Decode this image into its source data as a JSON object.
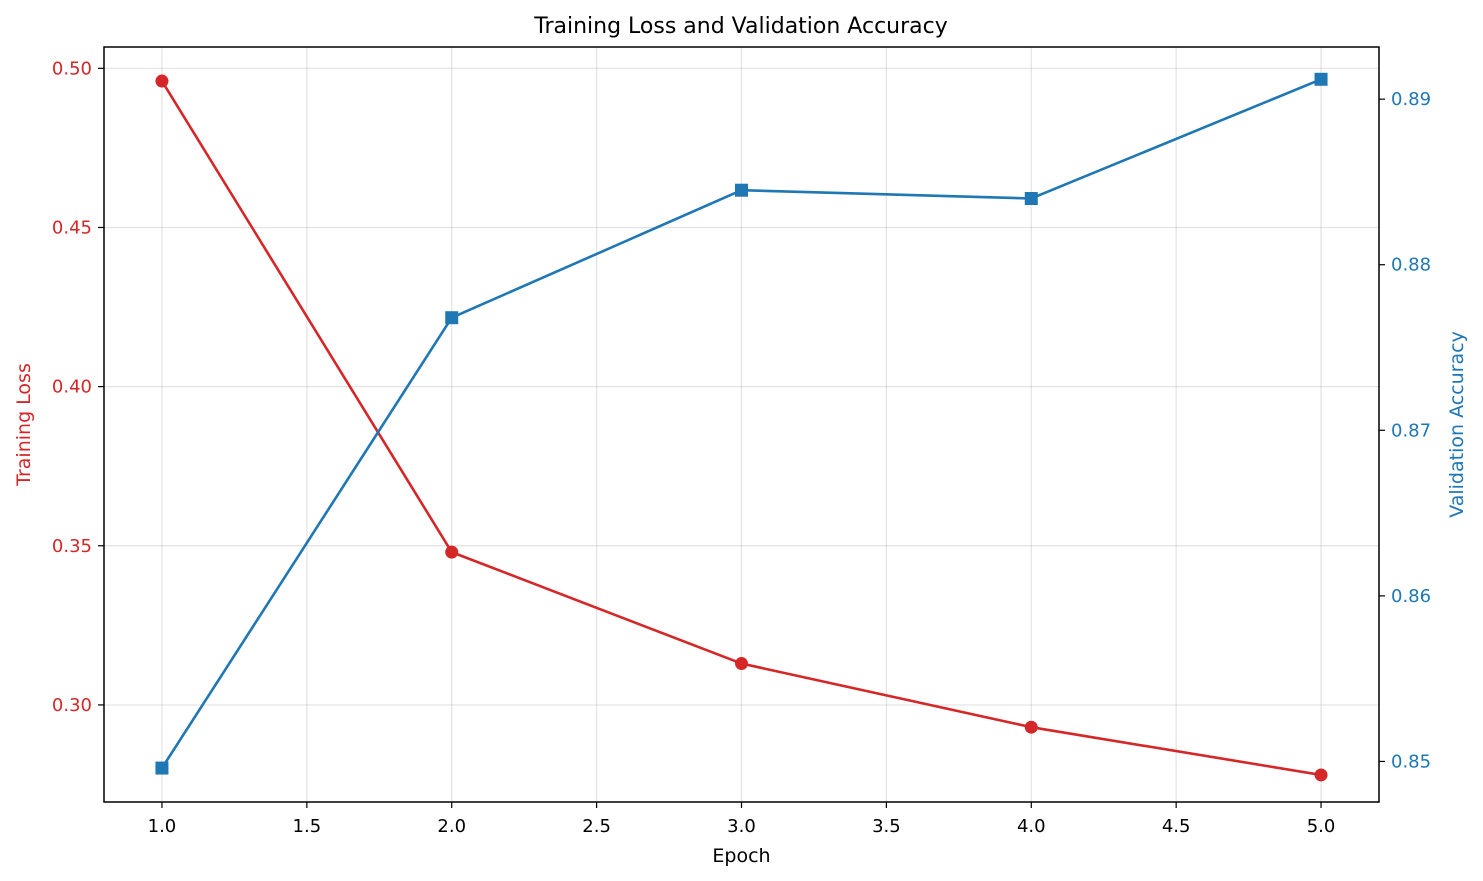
{
  "chart_data": {
    "type": "line",
    "title": "Training Loss and Validation Accuracy",
    "xlabel": "Epoch",
    "x": [
      1,
      2,
      3,
      4,
      5
    ],
    "xlim": [
      0.8,
      5.2
    ],
    "xticks": [
      "1.0",
      "1.5",
      "2.0",
      "2.5",
      "3.0",
      "3.5",
      "4.0",
      "4.5",
      "5.0"
    ],
    "grid": true,
    "series": [
      {
        "name": "Training Loss",
        "axis": "left",
        "color": "#d62728",
        "marker": "circle",
        "values": [
          0.496,
          0.348,
          0.313,
          0.293,
          0.278
        ]
      },
      {
        "name": "Validation Accuracy",
        "axis": "right",
        "color": "#1f77b4",
        "marker": "square",
        "values": [
          0.8496,
          0.8768,
          0.8845,
          0.884,
          0.8912
        ]
      }
    ],
    "left_axis": {
      "label": "Training Loss",
      "color": "#d62728",
      "ylim": [
        0.2695,
        0.5067
      ],
      "ticks": [
        "0.30",
        "0.35",
        "0.40",
        "0.45",
        "0.50"
      ]
    },
    "right_axis": {
      "label": "Validation Accuracy",
      "color": "#1f77b4",
      "ylim": [
        0.84755,
        0.89315
      ],
      "ticks": [
        "0.85",
        "0.86",
        "0.87",
        "0.88",
        "0.89"
      ]
    }
  }
}
